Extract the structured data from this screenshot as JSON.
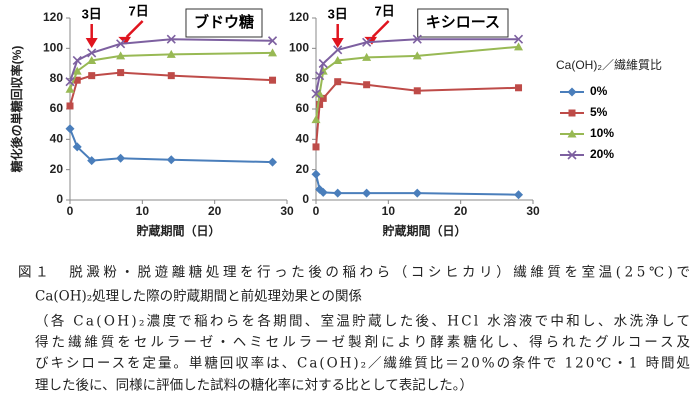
{
  "chart_data": [
    {
      "type": "line",
      "label": "ブドウ糖",
      "y_label": "糖化後の単糖回収率(%)",
      "x_label": "貯蔵期間（日）",
      "x": [
        0,
        1,
        3,
        7,
        14,
        28
      ],
      "xlim": [
        0,
        30
      ],
      "xticks": [
        0,
        10,
        20,
        30
      ],
      "ylim": [
        0,
        120
      ],
      "yticks": [
        0,
        20,
        40,
        60,
        80,
        100,
        120
      ],
      "annotations": [
        {
          "text": "3日",
          "x": 3
        },
        {
          "text": "7日",
          "x": 7
        }
      ],
      "series": [
        {
          "color": "#4a7ebb",
          "marker": "diamond",
          "values": [
            47,
            35,
            26,
            27.5,
            26.5,
            25
          ]
        },
        {
          "color": "#be4b48",
          "marker": "square",
          "values": [
            62,
            79,
            82,
            84,
            82,
            79
          ]
        },
        {
          "color": "#98b954",
          "marker": "triangle",
          "values": [
            73,
            85,
            92,
            95,
            96,
            97
          ]
        },
        {
          "color": "#7d60a0",
          "marker": "cross",
          "values": [
            78,
            92,
            97,
            103,
            106,
            105
          ]
        }
      ]
    },
    {
      "type": "line",
      "label": "キシロース",
      "x_label": "貯蔵期間（日）",
      "x": [
        0,
        0.5,
        1,
        3,
        7,
        14,
        28
      ],
      "xlim": [
        0,
        30
      ],
      "xticks": [
        0,
        10,
        20,
        30
      ],
      "ylim": [
        0,
        120
      ],
      "yticks": [
        0,
        20,
        40,
        60,
        80,
        100,
        120
      ],
      "annotations": [
        {
          "text": "3日",
          "x": 3
        },
        {
          "text": "7日",
          "x": 7
        }
      ],
      "legend_title": "Ca(OH)₂／繊維質比",
      "series": [
        {
          "name": "0%",
          "color": "#4a7ebb",
          "marker": "diamond",
          "values": [
            17,
            7,
            5,
            4.5,
            4.5,
            4.5,
            3.5
          ]
        },
        {
          "name": "5%",
          "color": "#be4b48",
          "marker": "square",
          "values": [
            35,
            63,
            67,
            78,
            76,
            72,
            74
          ]
        },
        {
          "name": "10%",
          "color": "#98b954",
          "marker": "triangle",
          "values": [
            53,
            70,
            85,
            92,
            94,
            95,
            101
          ]
        },
        {
          "name": "20%",
          "color": "#7d60a0",
          "marker": "cross",
          "values": [
            70,
            82,
            90,
            99,
            104,
            106,
            106
          ]
        }
      ]
    }
  ],
  "caption": [
    "図１　脱澱粉・脱遊離糖処理を行った後の稲わら（コシヒカリ）繊維質を室温(25℃)で",
    "Ca(OH)₂処理した際の貯蔵期間と前処理効果との関係",
    "（各 Ca(OH)₂濃度で稲わらを各期間、室温貯蔵した後、HCl 水溶液で中和し、水洗浄して",
    "得た繊維質をセルラーゼ・ヘミセルラーゼ製剤により酵素糖化し、得られたグルコース及",
    "びキシロースを定量。単糖回収率は、Ca(OH)₂／繊維質比＝20%の条件で 120℃・1 時間処",
    "理した後に、同様に評価した試料の糖化率に対する比として表記した。）"
  ]
}
